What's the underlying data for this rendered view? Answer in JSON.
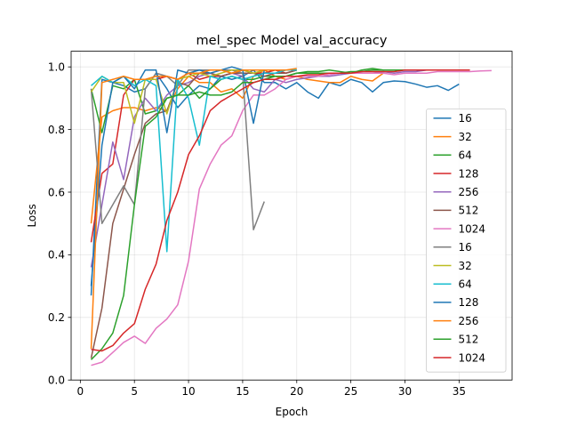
{
  "chart_data": {
    "type": "line",
    "title": "mel_spec Model val_accuracy",
    "xlabel": "Epoch",
    "ylabel": "Loss",
    "xlim": [
      -0.85,
      39.9
    ],
    "ylim": [
      0.0,
      1.05
    ],
    "xticks": [
      0,
      5,
      10,
      15,
      20,
      25,
      30,
      35
    ],
    "yticks": [
      0.0,
      0.2,
      0.4,
      0.6,
      0.8,
      1.0
    ],
    "xtick_labels": [
      "0",
      "5",
      "10",
      "15",
      "20",
      "25",
      "30",
      "35"
    ],
    "ytick_labels": [
      "0.0",
      "0.2",
      "0.4",
      "0.6",
      "0.8",
      "1.0"
    ],
    "grid": true,
    "legend_position": "center-right",
    "series": [
      {
        "name": "16",
        "color": "#1f77b4",
        "x": [
          1,
          2,
          3,
          4,
          5,
          6,
          7,
          8,
          9,
          10,
          11,
          12,
          13,
          14,
          15,
          16,
          17,
          18,
          19,
          20,
          21,
          22,
          23,
          24,
          25,
          26,
          27,
          28,
          29,
          30,
          31,
          32,
          33,
          34,
          35
        ],
        "y": [
          0.27,
          0.96,
          0.95,
          0.94,
          0.92,
          0.93,
          0.98,
          0.93,
          0.87,
          0.91,
          0.94,
          0.93,
          0.97,
          0.96,
          0.97,
          0.99,
          0.95,
          0.95,
          0.93,
          0.95,
          0.92,
          0.9,
          0.95,
          0.94,
          0.96,
          0.95,
          0.92,
          0.95,
          0.955,
          0.953,
          0.945,
          0.935,
          0.94,
          0.925,
          0.945
        ]
      },
      {
        "name": "32",
        "color": "#ff7f0e",
        "x": [
          1,
          2,
          3,
          4,
          5,
          6,
          7,
          8,
          9,
          10,
          11,
          12,
          13,
          14,
          15,
          16,
          17,
          18,
          19,
          20,
          21,
          22,
          23,
          24,
          25,
          26,
          27,
          28
        ],
        "y": [
          0.5,
          0.84,
          0.86,
          0.87,
          0.87,
          0.86,
          0.87,
          0.86,
          0.93,
          0.97,
          0.95,
          0.95,
          0.92,
          0.93,
          0.9,
          0.97,
          0.99,
          0.97,
          0.96,
          0.97,
          0.96,
          0.955,
          0.95,
          0.95,
          0.97,
          0.96,
          0.955,
          0.98
        ]
      },
      {
        "name": "64",
        "color": "#2ca02c",
        "x": [
          1,
          2,
          3,
          4,
          5,
          6,
          7,
          8,
          9,
          10,
          11,
          12,
          13,
          14,
          15,
          16,
          17,
          18,
          19,
          20,
          21,
          22,
          23,
          24,
          25,
          26,
          27,
          28
        ],
        "y": [
          0.93,
          0.79,
          0.94,
          0.93,
          0.96,
          0.85,
          0.86,
          0.9,
          0.91,
          0.94,
          0.9,
          0.93,
          0.96,
          0.97,
          0.96,
          0.96,
          0.97,
          0.97,
          0.97,
          0.98,
          0.985,
          0.985,
          0.99,
          0.985,
          0.98,
          0.99,
          0.995,
          0.99
        ]
      },
      {
        "name": "128",
        "color": "#d62728",
        "x": [
          1,
          2,
          3,
          4,
          5,
          6,
          7,
          8,
          9,
          10,
          11,
          12,
          13,
          14,
          15,
          16,
          17,
          18,
          19,
          20
        ],
        "y": [
          0.44,
          0.66,
          0.69,
          0.91,
          0.96,
          0.96,
          0.96,
          0.97,
          0.96,
          0.98,
          0.96,
          0.97,
          0.97,
          0.98,
          0.99,
          0.98,
          0.98,
          0.99,
          0.98,
          0.99
        ]
      },
      {
        "name": "256",
        "color": "#9467bd",
        "x": [
          1,
          2,
          3,
          4,
          5,
          6,
          7,
          8,
          9,
          10,
          11,
          12,
          13,
          14,
          15,
          16,
          17,
          18,
          19,
          20,
          21,
          22,
          23,
          24,
          25,
          26,
          27,
          28,
          29,
          30,
          31,
          32,
          33,
          34,
          35,
          36
        ],
        "y": [
          0.36,
          0.56,
          0.76,
          0.64,
          0.84,
          0.9,
          0.86,
          0.91,
          0.94,
          0.95,
          0.97,
          0.98,
          0.97,
          0.98,
          0.97,
          0.93,
          0.92,
          0.96,
          0.95,
          0.96,
          0.965,
          0.97,
          0.97,
          0.975,
          0.98,
          0.98,
          0.98,
          0.985,
          0.98,
          0.985,
          0.985,
          0.99,
          0.99,
          0.99,
          0.99,
          0.99
        ]
      },
      {
        "name": "512",
        "color": "#8c564b",
        "x": [
          1,
          2,
          3,
          4,
          5,
          6,
          7,
          8,
          9,
          10,
          11,
          12,
          13,
          14,
          15,
          16,
          17,
          18,
          19,
          20
        ],
        "y": [
          0.07,
          0.23,
          0.5,
          0.61,
          0.72,
          0.82,
          0.85,
          0.86,
          0.95,
          0.94,
          0.98,
          0.98,
          0.97,
          0.98,
          0.98,
          0.98,
          0.97,
          0.98,
          0.98,
          0.99
        ]
      },
      {
        "name": "1024",
        "color": "#e377c2",
        "x": [
          1,
          2,
          3,
          4,
          5,
          6,
          7,
          8,
          9,
          10,
          11,
          12,
          13,
          14,
          15,
          16,
          17,
          18,
          19,
          20,
          21,
          22,
          23,
          24,
          25,
          26,
          27,
          28,
          29,
          30,
          31,
          32,
          33,
          34,
          35,
          36,
          37,
          38
        ],
        "y": [
          0.047,
          0.057,
          0.088,
          0.12,
          0.14,
          0.117,
          0.165,
          0.195,
          0.24,
          0.38,
          0.61,
          0.69,
          0.75,
          0.78,
          0.86,
          0.91,
          0.91,
          0.93,
          0.96,
          0.97,
          0.97,
          0.97,
          0.975,
          0.98,
          0.98,
          0.98,
          0.98,
          0.98,
          0.975,
          0.98,
          0.98,
          0.98,
          0.985,
          0.985,
          0.985,
          0.985,
          0.987,
          0.988
        ]
      },
      {
        "name": "16",
        "color": "#7f7f7f",
        "x": [
          1,
          2,
          3,
          4,
          5,
          6,
          7,
          8,
          9,
          10,
          11,
          12,
          13,
          14,
          15,
          16,
          17
        ],
        "y": [
          0.93,
          0.5,
          0.56,
          0.62,
          0.56,
          0.93,
          0.98,
          0.97,
          0.94,
          0.99,
          0.99,
          0.99,
          0.99,
          0.99,
          0.98,
          0.48,
          0.57
        ]
      },
      {
        "name": "32",
        "color": "#bcbd22",
        "x": [
          1,
          2,
          3,
          4,
          5,
          6,
          7,
          8,
          9,
          10,
          11,
          12,
          13,
          14,
          15,
          16,
          17,
          18,
          19,
          20
        ],
        "y": [
          0.92,
          0.97,
          0.95,
          0.95,
          0.82,
          0.96,
          0.96,
          0.85,
          0.96,
          0.97,
          0.98,
          0.97,
          0.98,
          0.99,
          0.99,
          0.98,
          0.99,
          0.99,
          0.99,
          0.99
        ]
      },
      {
        "name": "64",
        "color": "#17becf",
        "x": [
          1,
          2,
          3,
          4,
          5,
          6,
          7,
          8,
          9,
          10,
          11,
          12,
          13,
          14,
          15,
          16,
          17,
          18,
          19,
          20
        ],
        "y": [
          0.94,
          0.97,
          0.95,
          0.97,
          0.94,
          0.96,
          0.94,
          0.41,
          0.96,
          0.9,
          0.75,
          0.97,
          0.96,
          0.97,
          0.96,
          0.97,
          0.98,
          0.98,
          0.99,
          0.99
        ]
      },
      {
        "name": "128",
        "color": "#1f77b4",
        "x": [
          1,
          2,
          3,
          4,
          5,
          6,
          7,
          8,
          9,
          10,
          11,
          12,
          13,
          14,
          15,
          16,
          17
        ],
        "y": [
          0.3,
          0.75,
          0.95,
          0.97,
          0.93,
          0.99,
          0.99,
          0.79,
          0.99,
          0.98,
          0.99,
          0.98,
          0.99,
          1.0,
          0.99,
          0.82,
          0.99
        ]
      },
      {
        "name": "256",
        "color": "#ff7f0e",
        "x": [
          1,
          2,
          3,
          4,
          5,
          6,
          7,
          8,
          9,
          10,
          11,
          12,
          13,
          14,
          15,
          16,
          17,
          18,
          19,
          20
        ],
        "y": [
          0.1,
          0.95,
          0.96,
          0.97,
          0.96,
          0.96,
          0.97,
          0.97,
          0.96,
          0.98,
          0.98,
          0.99,
          0.99,
          0.98,
          0.99,
          0.99,
          0.99,
          0.99,
          0.99,
          0.995
        ]
      },
      {
        "name": "512",
        "color": "#2ca02c",
        "x": [
          1,
          2,
          3,
          4,
          5,
          6,
          7,
          8,
          9,
          10,
          11,
          12,
          13,
          14,
          15,
          16,
          17,
          18,
          19,
          20,
          21,
          22,
          23,
          24,
          25,
          26,
          27,
          28,
          29,
          30,
          31,
          32,
          33,
          34,
          35,
          36
        ],
        "y": [
          0.065,
          0.1,
          0.15,
          0.27,
          0.56,
          0.81,
          0.84,
          0.9,
          0.91,
          0.91,
          0.92,
          0.91,
          0.91,
          0.92,
          0.95,
          0.95,
          0.96,
          0.97,
          0.97,
          0.98,
          0.98,
          0.98,
          0.98,
          0.98,
          0.985,
          0.985,
          0.99,
          0.99,
          0.99,
          0.99,
          0.99,
          0.99,
          0.99,
          0.99,
          0.99,
          0.99
        ]
      },
      {
        "name": "1024",
        "color": "#d62728",
        "x": [
          1,
          2,
          3,
          4,
          5,
          6,
          7,
          8,
          9,
          10,
          11,
          12,
          13,
          14,
          15,
          16,
          17,
          18,
          19,
          20,
          21,
          22,
          23,
          24,
          25,
          26,
          27,
          28,
          29,
          30,
          31,
          32,
          33,
          34,
          35,
          36
        ],
        "y": [
          0.098,
          0.093,
          0.11,
          0.15,
          0.18,
          0.29,
          0.37,
          0.51,
          0.6,
          0.72,
          0.78,
          0.86,
          0.89,
          0.91,
          0.93,
          0.95,
          0.96,
          0.96,
          0.97,
          0.97,
          0.975,
          0.975,
          0.98,
          0.98,
          0.98,
          0.985,
          0.985,
          0.985,
          0.985,
          0.99,
          0.99,
          0.99,
          0.99,
          0.99,
          0.99,
          0.99
        ]
      }
    ]
  }
}
